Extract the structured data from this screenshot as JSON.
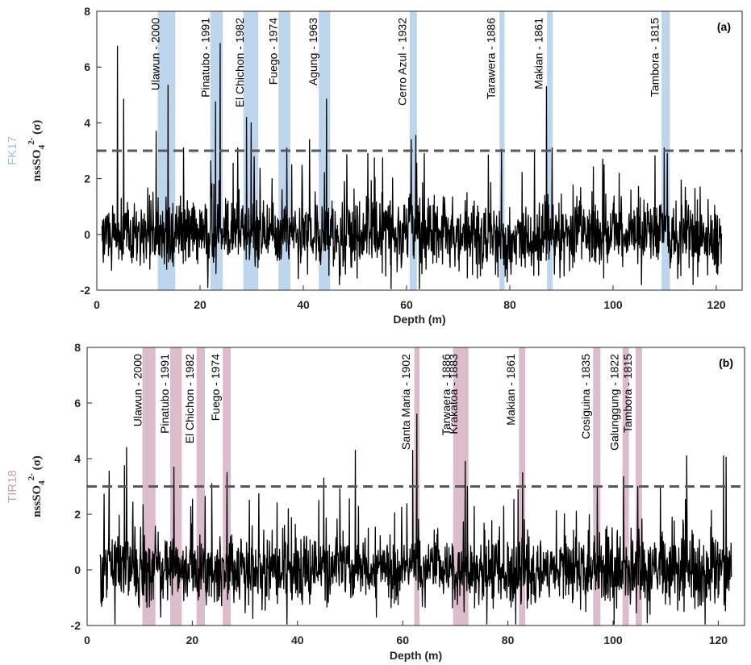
{
  "colors": {
    "fk17": "#bed5ee",
    "fk17_label": "#9dc3e6",
    "tir18": "#dcbccb",
    "tir18_label": "#c99bb4",
    "signal": "#000000",
    "threshold": "#595959"
  },
  "chart_data": [
    {
      "type": "line",
      "panel_label": "(a)",
      "record_name": "FK17",
      "ylabel": "nssSO",
      "ylabel_sub": "4",
      "ylabel_sup": "2-",
      "ylabel_suffix": " (σ)",
      "xlabel": "Depth (m)",
      "xlim": [
        0,
        125
      ],
      "ylim": [
        -2,
        8
      ],
      "xticks": [
        0,
        20,
        40,
        60,
        80,
        100,
        120
      ],
      "yticks": [
        -2,
        0,
        2,
        4,
        6,
        8
      ],
      "threshold": 3,
      "data_range": [
        1,
        121
      ],
      "series": [
        {
          "values_note": "high-frequency sulfate anomaly record"
        }
      ],
      "events": [
        {
          "label": "Ulawun - 2000",
          "start": 11.8,
          "end": 15.2
        },
        {
          "label": "Pinatubo - 1991",
          "start": 22.0,
          "end": 24.4
        },
        {
          "label": "El Chichon - 1982",
          "start": 28.4,
          "end": 31.3
        },
        {
          "label": "Fuego - 1974",
          "start": 35.2,
          "end": 37.5
        },
        {
          "label": "Agung - 1963",
          "start": 43.0,
          "end": 45.2
        },
        {
          "label": "Cerro Azul - 1932",
          "start": 60.6,
          "end": 62.0
        },
        {
          "label": "Tarawera - 1886",
          "start": 78.0,
          "end": 79.0
        },
        {
          "label": "Makian - 1861",
          "start": 87.2,
          "end": 88.3
        },
        {
          "label": "Tambora - 1815",
          "start": 109.4,
          "end": 111.0
        }
      ],
      "peaks": [
        {
          "x": 4.0,
          "y": 6.75
        },
        {
          "x": 5.2,
          "y": 4.85
        },
        {
          "x": 11.5,
          "y": 3.7
        },
        {
          "x": 13.8,
          "y": 5.35
        },
        {
          "x": 16.8,
          "y": 3.1
        },
        {
          "x": 23.0,
          "y": 4.75
        },
        {
          "x": 23.9,
          "y": 6.85
        },
        {
          "x": 27.3,
          "y": 3.1
        },
        {
          "x": 29.0,
          "y": 4.2
        },
        {
          "x": 29.9,
          "y": 4.0
        },
        {
          "x": 36.8,
          "y": 3.1
        },
        {
          "x": 41.2,
          "y": 3.4
        },
        {
          "x": 44.5,
          "y": 4.85
        },
        {
          "x": 52.5,
          "y": 2.9
        },
        {
          "x": 60.9,
          "y": 3.4
        },
        {
          "x": 61.8,
          "y": 3.55
        },
        {
          "x": 78.4,
          "y": 3.05
        },
        {
          "x": 87.1,
          "y": 5.3
        },
        {
          "x": 88.2,
          "y": 3.1
        },
        {
          "x": 98.0,
          "y": 2.7
        },
        {
          "x": 109.9,
          "y": 3.1
        },
        {
          "x": 110.5,
          "y": 2.9
        }
      ],
      "dips": [
        {
          "x": 21.5,
          "y": -1.9
        },
        {
          "x": 47.0,
          "y": -1.8
        },
        {
          "x": 57.0,
          "y": -1.95
        },
        {
          "x": 62.5,
          "y": -1.95
        },
        {
          "x": 79.5,
          "y": -1.7
        },
        {
          "x": 105.5,
          "y": -1.8
        },
        {
          "x": 115.5,
          "y": -1.8
        }
      ]
    },
    {
      "type": "line",
      "panel_label": "(b)",
      "record_name": "TIR18",
      "ylabel": "nssSO",
      "ylabel_sub": "4",
      "ylabel_sup": "2-",
      "ylabel_suffix": " (σ)",
      "xlabel": "Depth (m)",
      "xlim": [
        0,
        125
      ],
      "ylim": [
        -2,
        8
      ],
      "xticks": [
        0,
        20,
        40,
        60,
        80,
        100,
        120
      ],
      "yticks": [
        -2,
        0,
        2,
        4,
        6,
        8
      ],
      "threshold": 3,
      "data_range": [
        2.5,
        122.5
      ],
      "series": [
        {
          "values_note": "high-frequency sulfate anomaly record"
        }
      ],
      "events": [
        {
          "label": "Ulawun - 2000",
          "start": 10.5,
          "end": 13.0
        },
        {
          "label": "Pinatubo - 1991",
          "start": 15.8,
          "end": 18.0
        },
        {
          "label": "El Chichon - 1982",
          "start": 20.8,
          "end": 22.4
        },
        {
          "label": "Fuego - 1974",
          "start": 25.8,
          "end": 27.3
        },
        {
          "label": "Santa Maria - 1902",
          "start": 62.2,
          "end": 63.2
        },
        {
          "label": "Tarwaera - 1886",
          "start": 69.6,
          "end": 71.2
        },
        {
          "label": "Krakatoa - 1883",
          "start": 71.0,
          "end": 72.5
        },
        {
          "label": "Makian - 1861",
          "start": 82.1,
          "end": 83.3
        },
        {
          "label": "Cosiguina - 1835",
          "start": 96.2,
          "end": 97.6
        },
        {
          "label": "Galunggung - 1822",
          "start": 101.8,
          "end": 103.0
        },
        {
          "label": "Tambora - 1815",
          "start": 104.3,
          "end": 105.5
        }
      ],
      "peaks": [
        {
          "x": 4.2,
          "y": 3.55
        },
        {
          "x": 7.1,
          "y": 3.75
        },
        {
          "x": 7.5,
          "y": 4.4
        },
        {
          "x": 16.5,
          "y": 3.7
        },
        {
          "x": 23.7,
          "y": 3.1
        },
        {
          "x": 26.6,
          "y": 3.5
        },
        {
          "x": 45.0,
          "y": 3.3
        },
        {
          "x": 51.0,
          "y": 4.3
        },
        {
          "x": 61.9,
          "y": 4.3
        },
        {
          "x": 62.7,
          "y": 5.6
        },
        {
          "x": 71.9,
          "y": 3.9
        },
        {
          "x": 72.3,
          "y": 3.0
        },
        {
          "x": 82.8,
          "y": 3.5
        },
        {
          "x": 97.0,
          "y": 3.0
        },
        {
          "x": 102.0,
          "y": 3.35
        },
        {
          "x": 104.7,
          "y": 3.0
        },
        {
          "x": 109.0,
          "y": 3.0
        },
        {
          "x": 114.0,
          "y": 4.1
        },
        {
          "x": 121.0,
          "y": 4.1
        },
        {
          "x": 121.5,
          "y": 4.05
        }
      ],
      "dips": [
        {
          "x": 5.3,
          "y": -1.95
        },
        {
          "x": 14.0,
          "y": -1.7
        },
        {
          "x": 31.5,
          "y": -1.75
        },
        {
          "x": 38.0,
          "y": -1.95
        },
        {
          "x": 55.0,
          "y": -1.7
        },
        {
          "x": 76.0,
          "y": -1.95
        },
        {
          "x": 81.5,
          "y": -1.95
        },
        {
          "x": 100.2,
          "y": -1.95
        },
        {
          "x": 106.5,
          "y": -1.9
        },
        {
          "x": 117.5,
          "y": -1.95
        }
      ]
    }
  ]
}
